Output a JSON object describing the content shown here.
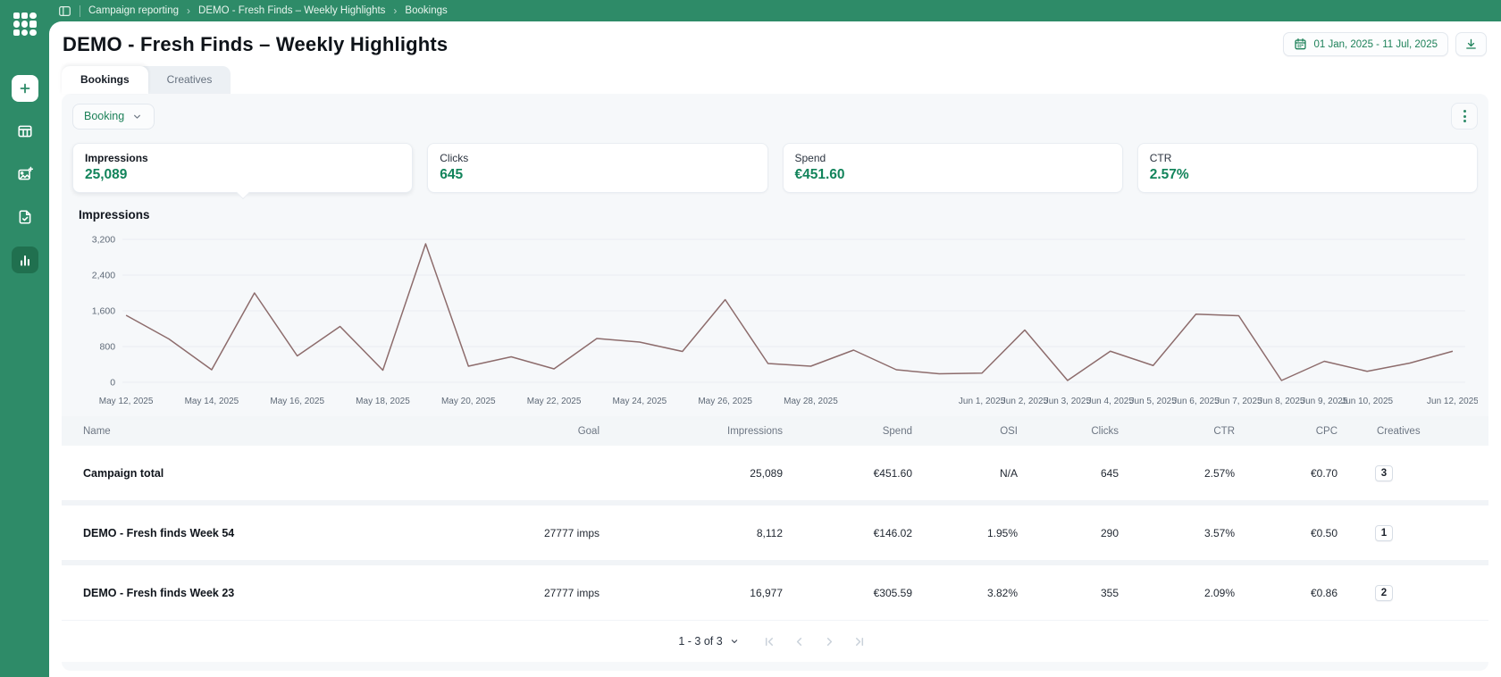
{
  "colors": {
    "brand_green": "#2e8b68",
    "active_item_green": "#20704f",
    "accent_text_green": "#12845b",
    "panel_gray": "#f6f8fa",
    "chart_line": "#8d6c6c"
  },
  "sidebar": {
    "items": [
      {
        "icon": "logo",
        "active": false
      },
      {
        "icon": "plus",
        "active": false
      },
      {
        "icon": "table",
        "active": false
      },
      {
        "icon": "creative-add",
        "active": false
      },
      {
        "icon": "document-check",
        "active": false
      },
      {
        "icon": "analytics",
        "active": true
      }
    ]
  },
  "breadcrumb": {
    "toggle_icon": "panel-toggle",
    "items": [
      "Campaign reporting",
      "DEMO - Fresh Finds – Weekly Highlights",
      "Bookings"
    ]
  },
  "header": {
    "title": "DEMO - Fresh Finds – Weekly Highlights",
    "date_range": "01 Jan, 2025 - 11 Jul, 2025",
    "date_icon": "calendar-icon",
    "download_icon": "download-icon"
  },
  "tabs": [
    {
      "label": "Bookings",
      "active": true
    },
    {
      "label": "Creatives",
      "active": false
    }
  ],
  "toolbar": {
    "filter_label": "Booking",
    "kebab_icon": "kebab-menu-icon"
  },
  "metrics": [
    {
      "label": "Impressions",
      "value": "25,089",
      "selected": true
    },
    {
      "label": "Clicks",
      "value": "645",
      "selected": false
    },
    {
      "label": "Spend",
      "value": "€451.60",
      "selected": false
    },
    {
      "label": "CTR",
      "value": "2.57%",
      "selected": false
    }
  ],
  "chart_data": {
    "type": "line",
    "title": "Impressions",
    "xlabel": "",
    "ylabel": "",
    "ylim": [
      0,
      3200
    ],
    "ytick_values": [
      0,
      800,
      1600,
      2400,
      3200
    ],
    "ytick_labels": [
      "0",
      "800",
      "1,600",
      "2,400",
      "3,200"
    ],
    "grid": true,
    "legend_position": "none",
    "line_color": "#8d6c6c",
    "x": [
      "May 12, 2025",
      "May 13, 2025",
      "May 14, 2025",
      "May 15, 2025",
      "May 16, 2025",
      "May 17, 2025",
      "May 18, 2025",
      "May 19, 2025",
      "May 20, 2025",
      "May 21, 2025",
      "May 22, 2025",
      "May 23, 2025",
      "May 24, 2025",
      "May 25, 2025",
      "May 26, 2025",
      "May 27, 2025",
      "May 28, 2025",
      "May 29, 2025",
      "May 30, 2025",
      "May 31, 2025",
      "Jun 1, 2025",
      "Jun 2, 2025",
      "Jun 3, 2025",
      "Jun 4, 2025",
      "Jun 5, 2025",
      "Jun 6, 2025",
      "Jun 7, 2025",
      "Jun 8, 2025",
      "Jun 9, 2025",
      "Jun 10, 2025",
      "Jun 11, 2025",
      "Jun 12, 2025"
    ],
    "values": [
      1500,
      970,
      280,
      2000,
      590,
      1250,
      270,
      3100,
      360,
      570,
      300,
      980,
      900,
      690,
      1850,
      420,
      360,
      720,
      280,
      190,
      205,
      1170,
      40,
      695,
      375,
      1525,
      1490,
      40,
      470,
      245,
      430,
      695
    ],
    "xtick_indices": [
      0,
      2,
      4,
      6,
      8,
      10,
      12,
      14,
      16,
      20,
      21,
      22,
      23,
      24,
      25,
      26,
      27,
      28,
      29,
      31
    ],
    "xtick_labels": [
      "May 12, 2025",
      "May 14, 2025",
      "May 16, 2025",
      "May 18, 2025",
      "May 20, 2025",
      "May 22, 2025",
      "May 24, 2025",
      "May 26, 2025",
      "May 28, 2025",
      "Jun 1, 2025",
      "Jun 2, 2025",
      "Jun 3, 2025",
      "Jun 4, 2025",
      "Jun 5, 2025",
      "Jun 6, 2025",
      "Jun 7, 2025",
      "Jun 8, 2025",
      "Jun 9, 2025",
      "Jun 10, 2025",
      "Jun 12, 2025"
    ]
  },
  "table": {
    "columns": [
      {
        "key": "name",
        "label": "Name",
        "align": "left"
      },
      {
        "key": "goal",
        "label": "Goal",
        "align": "right"
      },
      {
        "key": "impressions",
        "label": "Impressions",
        "align": "right"
      },
      {
        "key": "spend",
        "label": "Spend",
        "align": "right"
      },
      {
        "key": "osi",
        "label": "OSI",
        "align": "right"
      },
      {
        "key": "clicks",
        "label": "Clicks",
        "align": "right"
      },
      {
        "key": "ctr",
        "label": "CTR",
        "align": "right"
      },
      {
        "key": "cpc",
        "label": "CPC",
        "align": "right"
      },
      {
        "key": "creatives",
        "label": "Creatives",
        "align": "badge"
      }
    ],
    "rows": [
      {
        "name": "Campaign total",
        "goal": "",
        "impressions": "25,089",
        "spend": "€451.60",
        "osi": "N/A",
        "clicks": "645",
        "ctr": "2.57%",
        "cpc": "€0.70",
        "creatives": "3"
      },
      {
        "name": "DEMO - Fresh finds Week 54",
        "goal": "27777 imps",
        "impressions": "8,112",
        "spend": "€146.02",
        "osi": "1.95%",
        "clicks": "290",
        "ctr": "3.57%",
        "cpc": "€0.50",
        "creatives": "1"
      },
      {
        "name": "DEMO - Fresh finds Week 23",
        "goal": "27777 imps",
        "impressions": "16,977",
        "spend": "€305.59",
        "osi": "3.82%",
        "clicks": "355",
        "ctr": "2.09%",
        "cpc": "€0.86",
        "creatives": "2"
      }
    ]
  },
  "pagination": {
    "label": "1 - 3 of 3",
    "nav": [
      "first-page",
      "previous-page",
      "next-page",
      "last-page"
    ]
  }
}
